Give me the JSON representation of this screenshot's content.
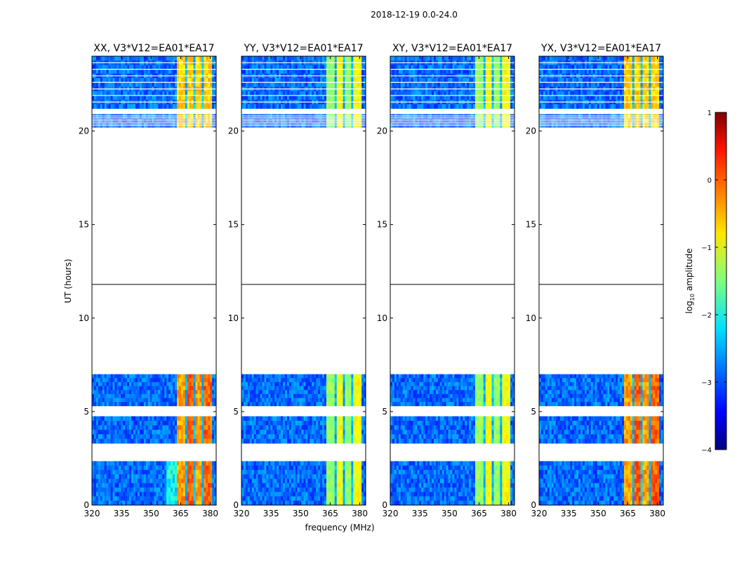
{
  "suptitle": "2018-12-19 0.0-24.0",
  "chart_data": {
    "type": "heatmap",
    "xlabel": "frequency (MHz)",
    "ylabel": "UT (hours)",
    "xlim": [
      320,
      383
    ],
    "ylim": [
      0,
      24
    ],
    "x_ticks": [
      "320",
      "335",
      "350",
      "365",
      "380"
    ],
    "y_ticks": [
      "0",
      "5",
      "10",
      "15",
      "20"
    ],
    "panels": [
      {
        "title": "XX, V3*V12=EA01*EA17",
        "level": "high"
      },
      {
        "title": "YY, V3*V12=EA01*EA17",
        "level": "low"
      },
      {
        "title": "XY, V3*V12=EA01*EA17",
        "level": "low"
      },
      {
        "title": "YX, V3*V12=EA01*EA17",
        "level": "high"
      }
    ],
    "data_time_blocks_hours": [
      [
        0.0,
        2.35
      ],
      [
        3.3,
        4.75
      ],
      [
        5.3,
        7.0
      ],
      [
        20.2,
        20.9
      ],
      [
        21.2,
        24.0
      ]
    ],
    "active_band_mhz": [
      363.5,
      381.0
    ],
    "colorbar": {
      "label": "log10 amplitude",
      "label_main": "log",
      "label_sub": "10",
      "label_rest": " amplitude",
      "range": [
        -4,
        1
      ],
      "ticks": [
        "1",
        "0",
        "−1",
        "−2",
        "−3",
        "−4"
      ],
      "colormap": "jet"
    }
  }
}
